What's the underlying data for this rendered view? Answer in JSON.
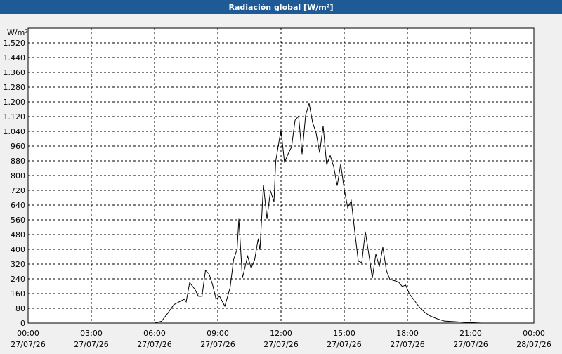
{
  "chart_data": {
    "type": "line",
    "title": "Radiación global [W/m²]",
    "y_label": "W/m²",
    "x": [
      "27/07/26 00:00",
      "27/07/26 06:00",
      "27/07/26 06:20",
      "27/07/26 06:40",
      "27/07/26 06:55",
      "27/07/26 07:10",
      "27/07/26 07:25",
      "27/07/26 07:30",
      "27/07/26 07:40",
      "27/07/26 07:55",
      "27/07/26 08:05",
      "27/07/26 08:15",
      "27/07/26 08:25",
      "27/07/26 08:35",
      "27/07/26 08:45",
      "27/07/26 08:55",
      "27/07/26 09:05",
      "27/07/26 09:20",
      "27/07/26 09:35",
      "27/07/26 09:45",
      "27/07/26 09:55",
      "27/07/26 10:00",
      "27/07/26 10:10",
      "27/07/26 10:25",
      "27/07/26 10:35",
      "27/07/26 10:45",
      "27/07/26 10:55",
      "27/07/26 11:00",
      "27/07/26 11:10",
      "27/07/26 11:20",
      "27/07/26 11:30",
      "27/07/26 11:40",
      "27/07/26 11:45",
      "27/07/26 11:55",
      "27/07/26 12:00",
      "27/07/26 12:10",
      "27/07/26 12:20",
      "27/07/26 12:30",
      "27/07/26 12:40",
      "27/07/26 12:50",
      "27/07/26 13:00",
      "27/07/26 13:10",
      "27/07/26 13:20",
      "27/07/26 13:30",
      "27/07/26 13:40",
      "27/07/26 13:50",
      "27/07/26 14:00",
      "27/07/26 14:10",
      "27/07/26 14:20",
      "27/07/26 14:30",
      "27/07/26 14:40",
      "27/07/26 14:50",
      "27/07/26 15:00",
      "27/07/26 15:10",
      "27/07/26 15:20",
      "27/07/26 15:30",
      "27/07/26 15:40",
      "27/07/26 15:50",
      "27/07/26 16:00",
      "27/07/26 16:10",
      "27/07/26 16:20",
      "27/07/26 16:30",
      "27/07/26 16:40",
      "27/07/26 16:50",
      "27/07/26 17:00",
      "27/07/26 17:10",
      "27/07/26 17:25",
      "27/07/26 17:35",
      "27/07/26 17:45",
      "27/07/26 17:55",
      "27/07/26 18:05",
      "27/07/26 18:20",
      "27/07/26 18:35",
      "27/07/26 18:50",
      "27/07/26 19:05",
      "27/07/26 19:25",
      "27/07/26 19:45",
      "27/07/26 20:10",
      "27/07/26 20:40",
      "27/07/26 21:30",
      "27/07/26 23:50"
    ],
    "series": [
      {
        "color": "#000000",
        "values": [
          0,
          0,
          10,
          60,
          100,
          115,
          130,
          115,
          220,
          183,
          145,
          145,
          286,
          267,
          210,
          130,
          145,
          92,
          191,
          344,
          401,
          565,
          244,
          363,
          298,
          344,
          458,
          397,
          749,
          565,
          718,
          657,
          878,
          993,
          1046,
          871,
          917,
          955,
          1100,
          1123,
          917,
          1127,
          1192,
          1088,
          1031,
          924,
          1069,
          859,
          909,
          848,
          745,
          863,
          726,
          626,
          664,
          496,
          336,
          328,
          496,
          374,
          244,
          374,
          306,
          412,
          286,
          237,
          229,
          222,
          199,
          206,
          160,
          122,
          84,
          57,
          38,
          23,
          11,
          8,
          4,
          0,
          0
        ]
      }
    ],
    "xlim": [
      "27/07/26 00:00",
      "28/07/26 00:00"
    ],
    "xticks": [
      {
        "value": "27/07/26 00:00",
        "label": [
          "00:00",
          "27/07/26"
        ]
      },
      {
        "value": "27/07/26 03:00",
        "label": [
          "03:00",
          "27/07/26"
        ]
      },
      {
        "value": "27/07/26 06:00",
        "label": [
          "06:00",
          "27/07/26"
        ]
      },
      {
        "value": "27/07/26 09:00",
        "label": [
          "09:00",
          "27/07/26"
        ]
      },
      {
        "value": "27/07/26 12:00",
        "label": [
          "12:00",
          "27/07/26"
        ]
      },
      {
        "value": "27/07/26 15:00",
        "label": [
          "15:00",
          "27/07/26"
        ]
      },
      {
        "value": "27/07/26 18:00",
        "label": [
          "18:00",
          "27/07/26"
        ]
      },
      {
        "value": "27/07/26 21:00",
        "label": [
          "21:00",
          "27/07/26"
        ]
      },
      {
        "value": "28/07/26 00:00",
        "label": [
          "00:00",
          "28/07/26"
        ]
      }
    ],
    "ylim": [
      0,
      1600
    ],
    "yticks": [
      0,
      80,
      160,
      240,
      320,
      400,
      480,
      560,
      640,
      720,
      800,
      880,
      960,
      {
        "value": 1040,
        "label": "1.040"
      },
      {
        "value": 1120,
        "label": "1.120"
      },
      {
        "value": 1200,
        "label": "1.200"
      },
      {
        "value": 1280,
        "label": "1.280"
      },
      {
        "value": 1360,
        "label": "1.360"
      },
      {
        "value": 1440,
        "label": "1.440"
      },
      {
        "value": 1520,
        "label": "1.520"
      }
    ],
    "grid": true
  }
}
